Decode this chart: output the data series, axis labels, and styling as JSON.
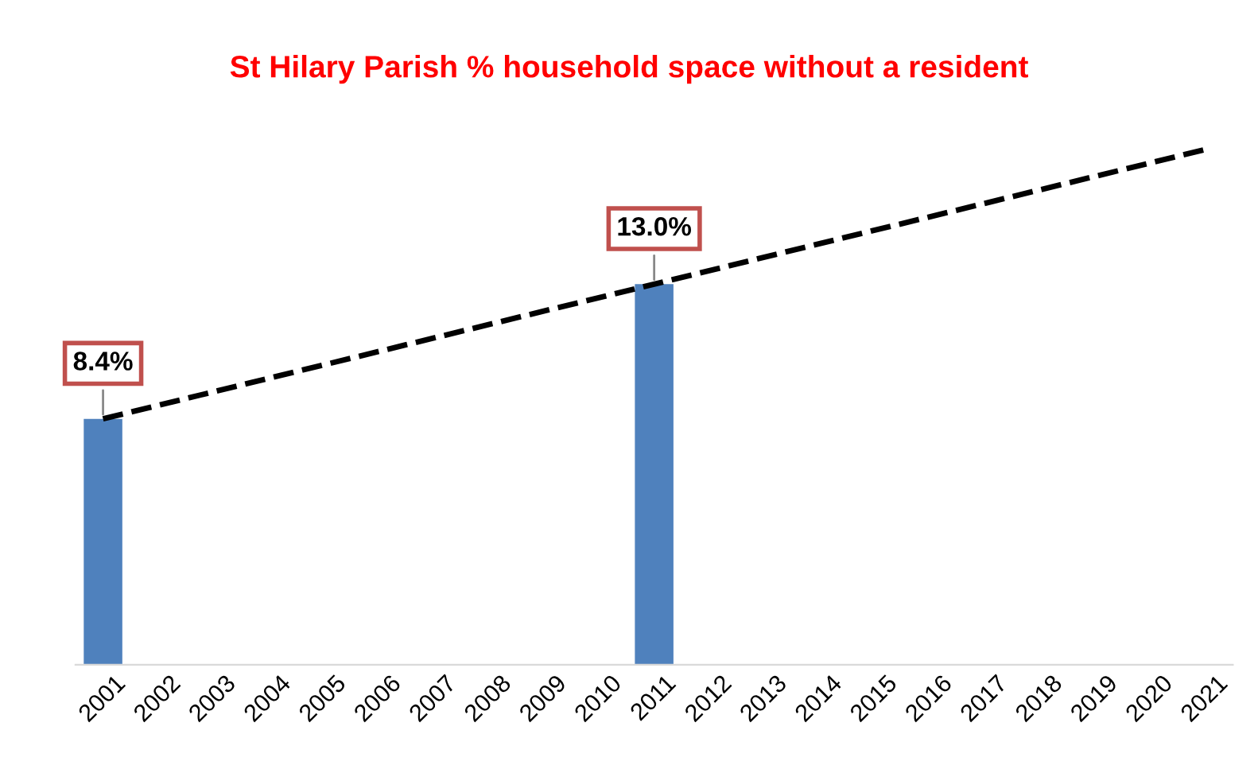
{
  "chart_data": {
    "type": "bar",
    "title": "St Hilary Parish % household space without a resident",
    "xlim": [
      2000.5,
      2021.5
    ],
    "xticks": [
      2001,
      2002,
      2003,
      2004,
      2005,
      2006,
      2007,
      2008,
      2009,
      2010,
      2011,
      2012,
      2013,
      2014,
      2015,
      2016,
      2017,
      2018,
      2019,
      2020,
      2021
    ],
    "series": [
      {
        "color": "#4f81bd",
        "x": [
          2001,
          2011
        ],
        "values": [
          8.4,
          13.0
        ],
        "value_labels": [
          "8.4%",
          "13.0%"
        ]
      },
      {
        "type": "line",
        "color": "#000000",
        "line_style": "dashed",
        "x": [
          2001,
          2021
        ],
        "values": [
          8.4,
          17.6
        ]
      }
    ],
    "tick_labels": "x",
    "grid": false,
    "legend": false
  }
}
